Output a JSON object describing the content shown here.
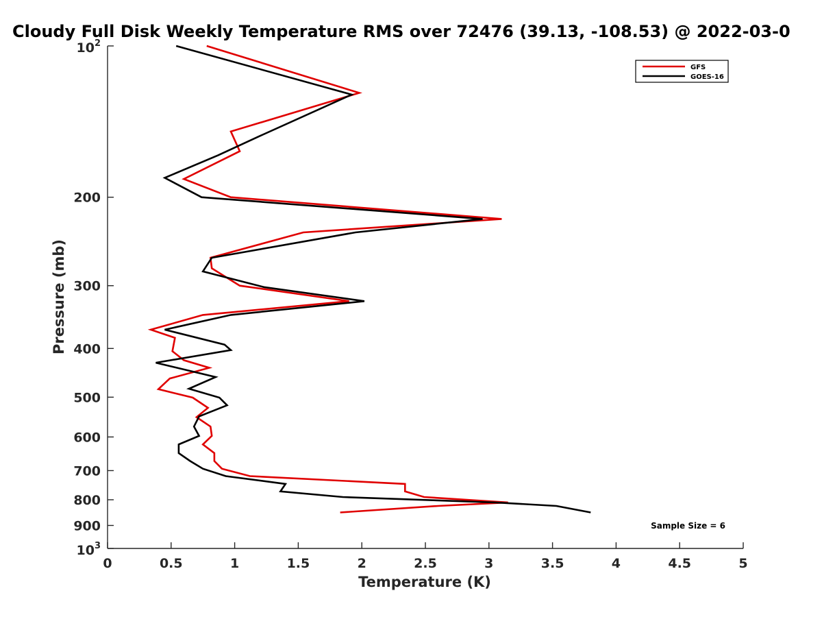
{
  "chart_data": {
    "type": "line",
    "title": "Cloudy Full Disk Weekly Temperature RMS over 72476 (39.13, -108.53) @ 2022-03-0",
    "xlabel": "Temperature (K)",
    "ylabel": "Pressure (mb)",
    "xlim": [
      0,
      5
    ],
    "ylim": [
      100,
      1000
    ],
    "y_scale": "log",
    "y_reversed": true,
    "grid": false,
    "legend_position": "top-right",
    "x_ticks": [
      "0",
      "0.5",
      "1",
      "1.5",
      "2",
      "2.5",
      "3",
      "3.5",
      "4",
      "4.5",
      "5"
    ],
    "y_ticks": [
      {
        "value": 100,
        "base": "10",
        "exp": "2"
      },
      {
        "value": 200,
        "label": "200"
      },
      {
        "value": 300,
        "label": "300"
      },
      {
        "value": 400,
        "label": "400"
      },
      {
        "value": 500,
        "label": "500"
      },
      {
        "value": 600,
        "label": "600"
      },
      {
        "value": 700,
        "label": "700"
      },
      {
        "value": 800,
        "label": "800"
      },
      {
        "value": 900,
        "label": "900"
      },
      {
        "value": 1000,
        "base": "10",
        "exp": "3"
      }
    ],
    "annotation": "Sample Size = 6",
    "series": [
      {
        "name": "GFS",
        "color": "#e00000",
        "points": [
          [
            0.78,
            100
          ],
          [
            1.98,
            124
          ],
          [
            0.97,
            148
          ],
          [
            1.04,
            162
          ],
          [
            0.6,
            184
          ],
          [
            0.97,
            200
          ],
          [
            3.1,
            221
          ],
          [
            1.54,
            235
          ],
          [
            0.81,
            264
          ],
          [
            0.82,
            277
          ],
          [
            1.04,
            300
          ],
          [
            1.9,
            322
          ],
          [
            0.75,
            343
          ],
          [
            0.34,
            367
          ],
          [
            0.53,
            381
          ],
          [
            0.51,
            405
          ],
          [
            0.6,
            422
          ],
          [
            0.8,
            437
          ],
          [
            0.49,
            459
          ],
          [
            0.4,
            482
          ],
          [
            0.67,
            501
          ],
          [
            0.79,
            525
          ],
          [
            0.7,
            548
          ],
          [
            0.81,
            572
          ],
          [
            0.82,
            597
          ],
          [
            0.75,
            621
          ],
          [
            0.84,
            646
          ],
          [
            0.84,
            670
          ],
          [
            0.9,
            694
          ],
          [
            1.12,
            718
          ],
          [
            2.34,
            744
          ],
          [
            2.34,
            770
          ],
          [
            2.49,
            790
          ],
          [
            3.15,
            810
          ],
          [
            2.6,
            823
          ],
          [
            1.83,
            848
          ]
        ]
      },
      {
        "name": "GOES-16",
        "color": "#000000",
        "points": [
          [
            0.54,
            100
          ],
          [
            1.92,
            125
          ],
          [
            1.2,
            151
          ],
          [
            0.87,
            165
          ],
          [
            0.45,
            183
          ],
          [
            0.74,
            200
          ],
          [
            2.95,
            221
          ],
          [
            1.95,
            235
          ],
          [
            0.82,
            264
          ],
          [
            0.75,
            281
          ],
          [
            1.23,
            302
          ],
          [
            2.02,
            322
          ],
          [
            0.97,
            343
          ],
          [
            0.45,
            367
          ],
          [
            0.92,
            393
          ],
          [
            0.97,
            403
          ],
          [
            0.38,
            427
          ],
          [
            0.85,
            456
          ],
          [
            0.64,
            481
          ],
          [
            0.88,
            501
          ],
          [
            0.94,
            519
          ],
          [
            0.72,
            546
          ],
          [
            0.68,
            572
          ],
          [
            0.72,
            597
          ],
          [
            0.56,
            621
          ],
          [
            0.56,
            646
          ],
          [
            0.65,
            670
          ],
          [
            0.75,
            694
          ],
          [
            0.93,
            718
          ],
          [
            1.4,
            744
          ],
          [
            1.36,
            770
          ],
          [
            1.85,
            790
          ],
          [
            3.05,
            810
          ],
          [
            3.53,
            823
          ],
          [
            3.8,
            848
          ]
        ]
      }
    ]
  }
}
